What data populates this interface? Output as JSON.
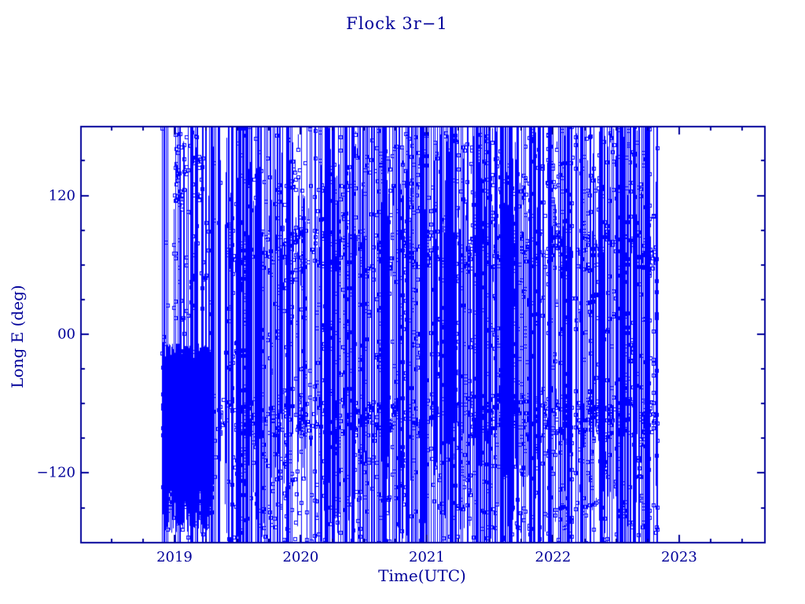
{
  "chart_data": {
    "type": "line-scatter",
    "title": "Flock 3r−1",
    "xlabel": "Time(UTC)",
    "ylabel": "Long E (deg)",
    "colors": {
      "data": "#0000ff",
      "axis": "#000099",
      "text": "#000099",
      "background": "#ffffff"
    },
    "marker": "open-square",
    "marker_size_px": 5,
    "xlim": [
      2018.2585,
      2023.68
    ],
    "ylim": [
      -180.2,
      179.5
    ],
    "x_major_ticks": [
      {
        "value": 2019,
        "label": "2019"
      },
      {
        "value": 2020,
        "label": "2020"
      },
      {
        "value": 2021,
        "label": "2021"
      },
      {
        "value": 2022,
        "label": "2022"
      },
      {
        "value": 2023,
        "label": "2023"
      }
    ],
    "x_minor_step": 0.25,
    "y_major_ticks": [
      {
        "value": 120,
        "label": "120"
      },
      {
        "value": 0,
        "label": "00"
      },
      {
        "value": -120,
        "label": "−120"
      }
    ],
    "y_minor_step": 30,
    "grid": false,
    "legend": null,
    "data_time_span": {
      "start": 2018.9,
      "end": 2022.83
    },
    "description": "Satellite sub-longitude vs time; wrapping longitude traces render as dense vertical blue lines with small open-square sample markers. Dense low-longitude cluster late 2018 to early 2019, sparse gap spring 2019, then near-solid coverage mid-2019 through late 2022 with marker bands near +70 deg and −70 deg.",
    "render_spec": {
      "seed": 1337,
      "segments": [
        {
          "name": "early-blob",
          "x0": 2018.9,
          "x1": 2019.3,
          "lines": 185,
          "full_frac": 0.06,
          "y_top": [
            -8,
            -22
          ],
          "y_bot": [
            -135,
            -172
          ],
          "markers_per_line": [
            0,
            3
          ]
        },
        {
          "name": "early-spikes",
          "x0": 2018.9,
          "x1": 2019.3,
          "lines": 30,
          "full_frac": 0.45,
          "y_top": [
            80,
            179
          ],
          "y_bot": [
            -60,
            -180
          ],
          "markers_per_line": [
            1,
            4
          ]
        },
        {
          "name": "spring-gap",
          "x0": 2019.3,
          "x1": 2019.42,
          "lines": 11,
          "full_frac": 0.4,
          "y_top": [
            90,
            179
          ],
          "y_bot": [
            -90,
            -180
          ],
          "markers_per_line": [
            0,
            2
          ]
        },
        {
          "name": "mid-2019",
          "x0": 2019.42,
          "x1": 2020.15,
          "lines": 118,
          "full_frac": 0.5,
          "y_top": [
            60,
            179
          ],
          "y_bot": [
            -60,
            -180
          ],
          "markers_per_line": [
            1,
            4
          ]
        },
        {
          "name": "dense-span",
          "x0": 2020.15,
          "x1": 2022.83,
          "lines": 540,
          "full_frac": 0.55,
          "y_top": [
            70,
            179
          ],
          "y_bot": [
            -70,
            -180
          ],
          "markers_per_line": [
            1,
            4
          ]
        }
      ],
      "marker_clusters": [
        {
          "name": "top-early",
          "x0": 2019.0,
          "x1": 2019.22,
          "y0": 105,
          "y1": 175,
          "count": 48
        },
        {
          "name": "band-high",
          "x0": 2019.42,
          "x1": 2022.83,
          "y0": 55,
          "y1": 90,
          "count": 330
        },
        {
          "name": "band-low",
          "x0": 2019.33,
          "x1": 2022.83,
          "y0": -88,
          "y1": -55,
          "count": 400
        },
        {
          "name": "blob-markers",
          "x0": 2018.9,
          "x1": 2019.32,
          "y0": -165,
          "y1": -12,
          "count": 150
        },
        {
          "name": "bottom-scatter",
          "x0": 2019.42,
          "x1": 2022.83,
          "y0": -178,
          "y1": -95,
          "count": 165
        },
        {
          "name": "top-scatter",
          "x0": 2019.8,
          "x1": 2022.83,
          "y0": 95,
          "y1": 178,
          "count": 130
        },
        {
          "name": "mid-scatter",
          "x0": 2019.42,
          "x1": 2022.83,
          "y0": -170,
          "y1": 170,
          "count": 175
        }
      ]
    }
  }
}
